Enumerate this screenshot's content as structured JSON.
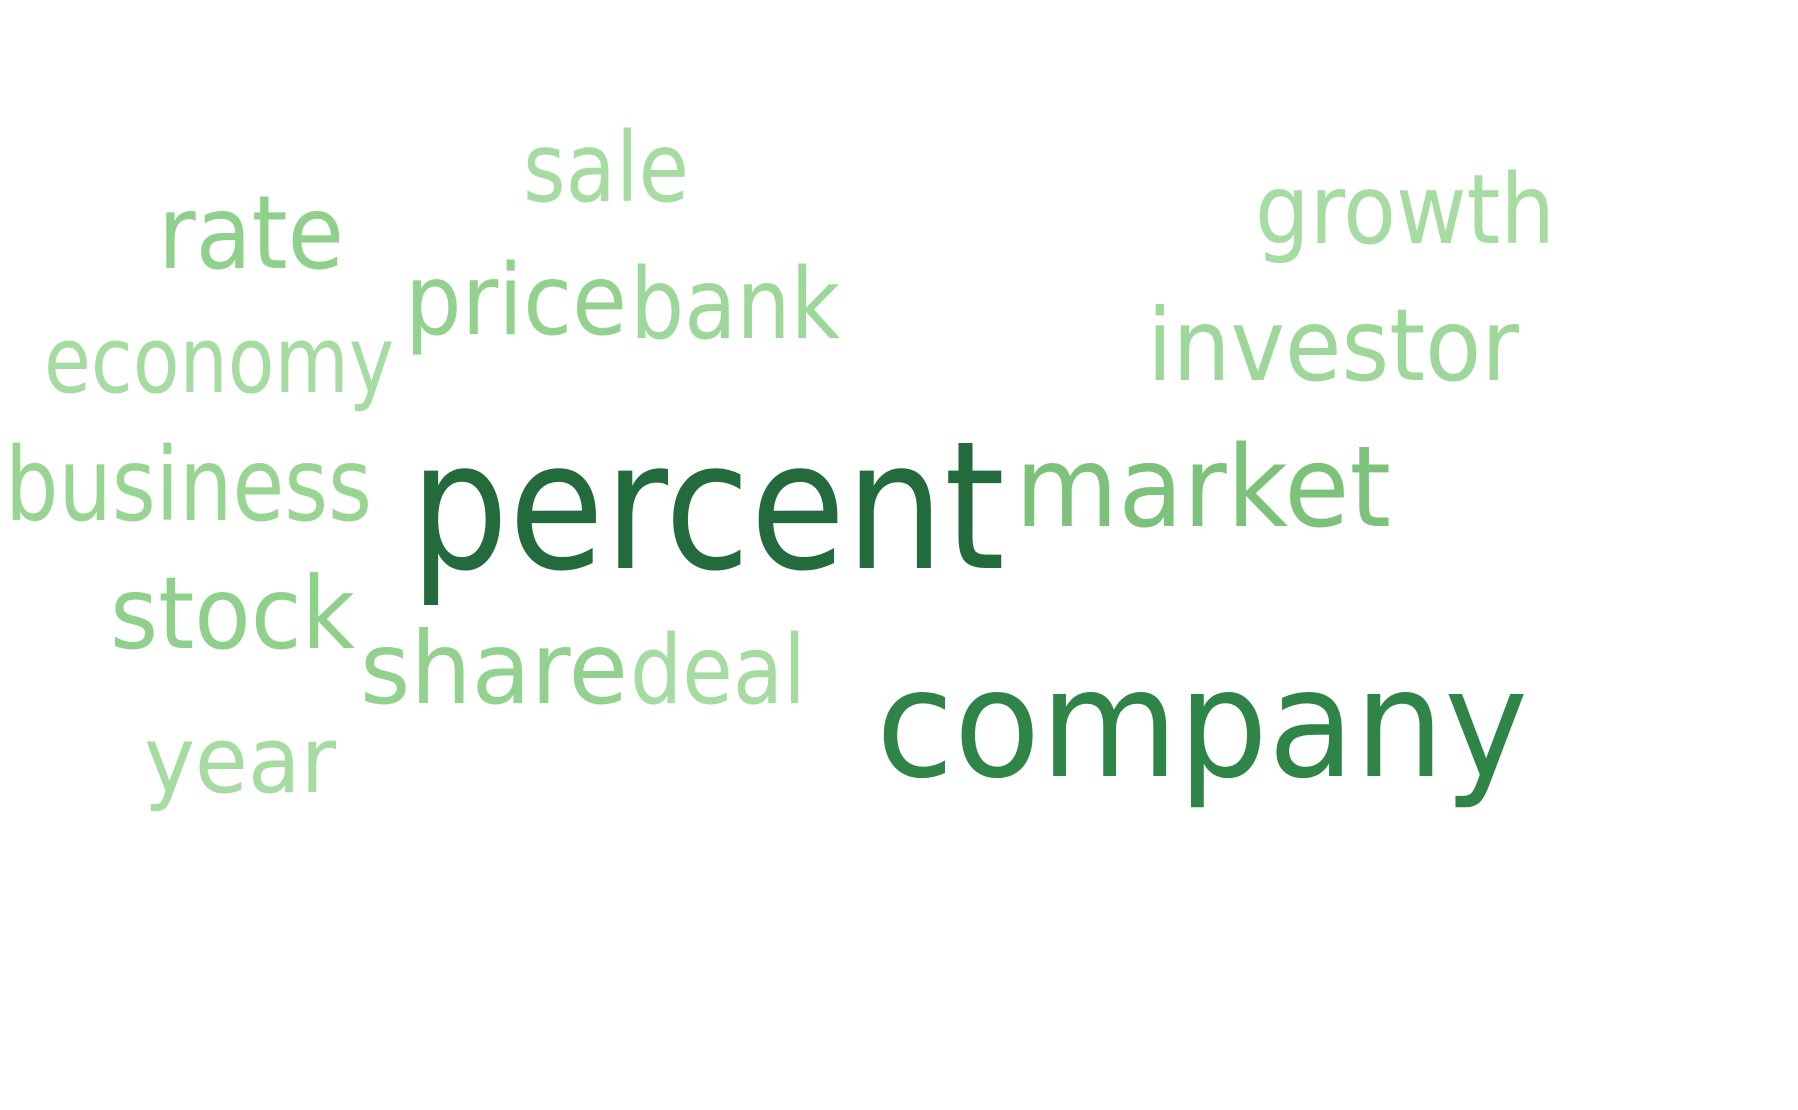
{
  "word_cloud": {
    "words": [
      {
        "id": "percent",
        "text": "percent",
        "color": "#236b3c"
      },
      {
        "id": "company",
        "text": "company",
        "color": "#2e8547"
      },
      {
        "id": "market",
        "text": "market",
        "color": "#7cc27a"
      },
      {
        "id": "business",
        "text": "business",
        "color": "#98d593"
      },
      {
        "id": "stock",
        "text": "stock",
        "color": "#8fd08a"
      },
      {
        "id": "rate",
        "text": "rate",
        "color": "#8fd08a"
      },
      {
        "id": "price",
        "text": "price",
        "color": "#93d28e"
      },
      {
        "id": "bank",
        "text": "bank",
        "color": "#9ed79a"
      },
      {
        "id": "investor",
        "text": "investor",
        "color": "#9ed79a"
      },
      {
        "id": "share",
        "text": "share",
        "color": "#93d28e"
      },
      {
        "id": "deal",
        "text": "deal",
        "color": "#a6dca2"
      },
      {
        "id": "sale",
        "text": "sale",
        "color": "#a6dca2"
      },
      {
        "id": "growth",
        "text": "growth",
        "color": "#a6dca2"
      },
      {
        "id": "economy",
        "text": "economy",
        "color": "#a6dca2"
      },
      {
        "id": "year",
        "text": "year",
        "color": "#a6dca2"
      }
    ]
  }
}
